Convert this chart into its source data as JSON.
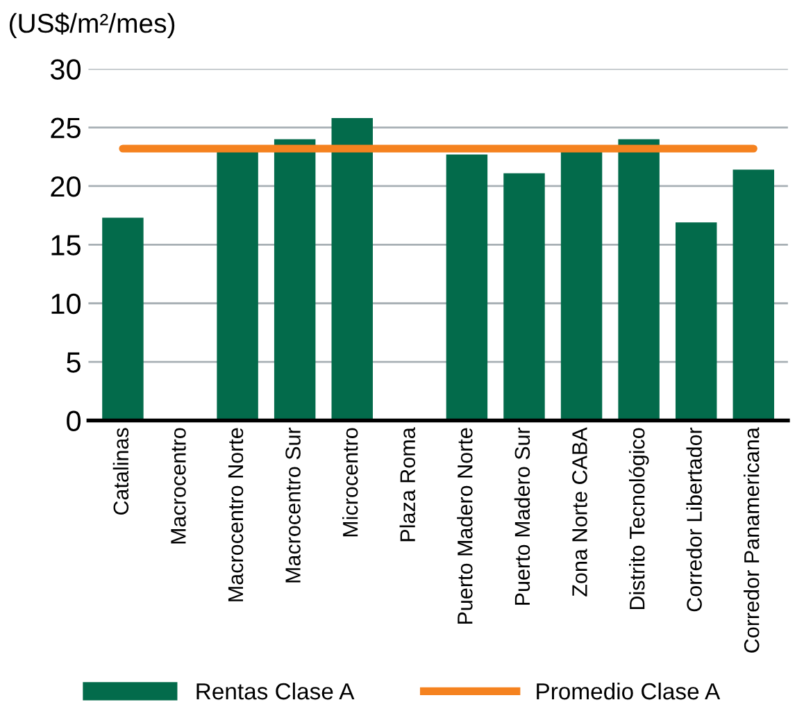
{
  "chart_data": {
    "type": "bar",
    "ylabel": "(US$/m²/mes)",
    "categories": [
      "Catalinas",
      "Macrocentro",
      "Macrocentro Norte",
      "Macrocentro Sur",
      "Microcentro",
      "Plaza Roma",
      "Puerto Madero Norte",
      "Puerto Madero Sur",
      "Zona Norte CABA",
      "Distrito Tecnológico",
      "Corredor Libertador",
      "Corredor Panamericana"
    ],
    "series": [
      {
        "name": "Rentas Clase A",
        "color": "#036b4b",
        "values": [
          17.3,
          null,
          23.1,
          24.0,
          25.8,
          null,
          22.7,
          21.1,
          23.0,
          24.0,
          16.9,
          21.4
        ]
      },
      {
        "name": "Promedio Clase A",
        "color": "#f5821f",
        "type": "line",
        "values": [
          23.2,
          23.2,
          23.2,
          23.2,
          23.2,
          23.2,
          23.2,
          23.2,
          23.2,
          23.2,
          23.2,
          23.2
        ]
      }
    ],
    "ylim": [
      0,
      30
    ],
    "yticks": [
      0,
      5,
      10,
      15,
      20,
      25,
      30
    ],
    "grid": "y",
    "legend": "bottom"
  }
}
